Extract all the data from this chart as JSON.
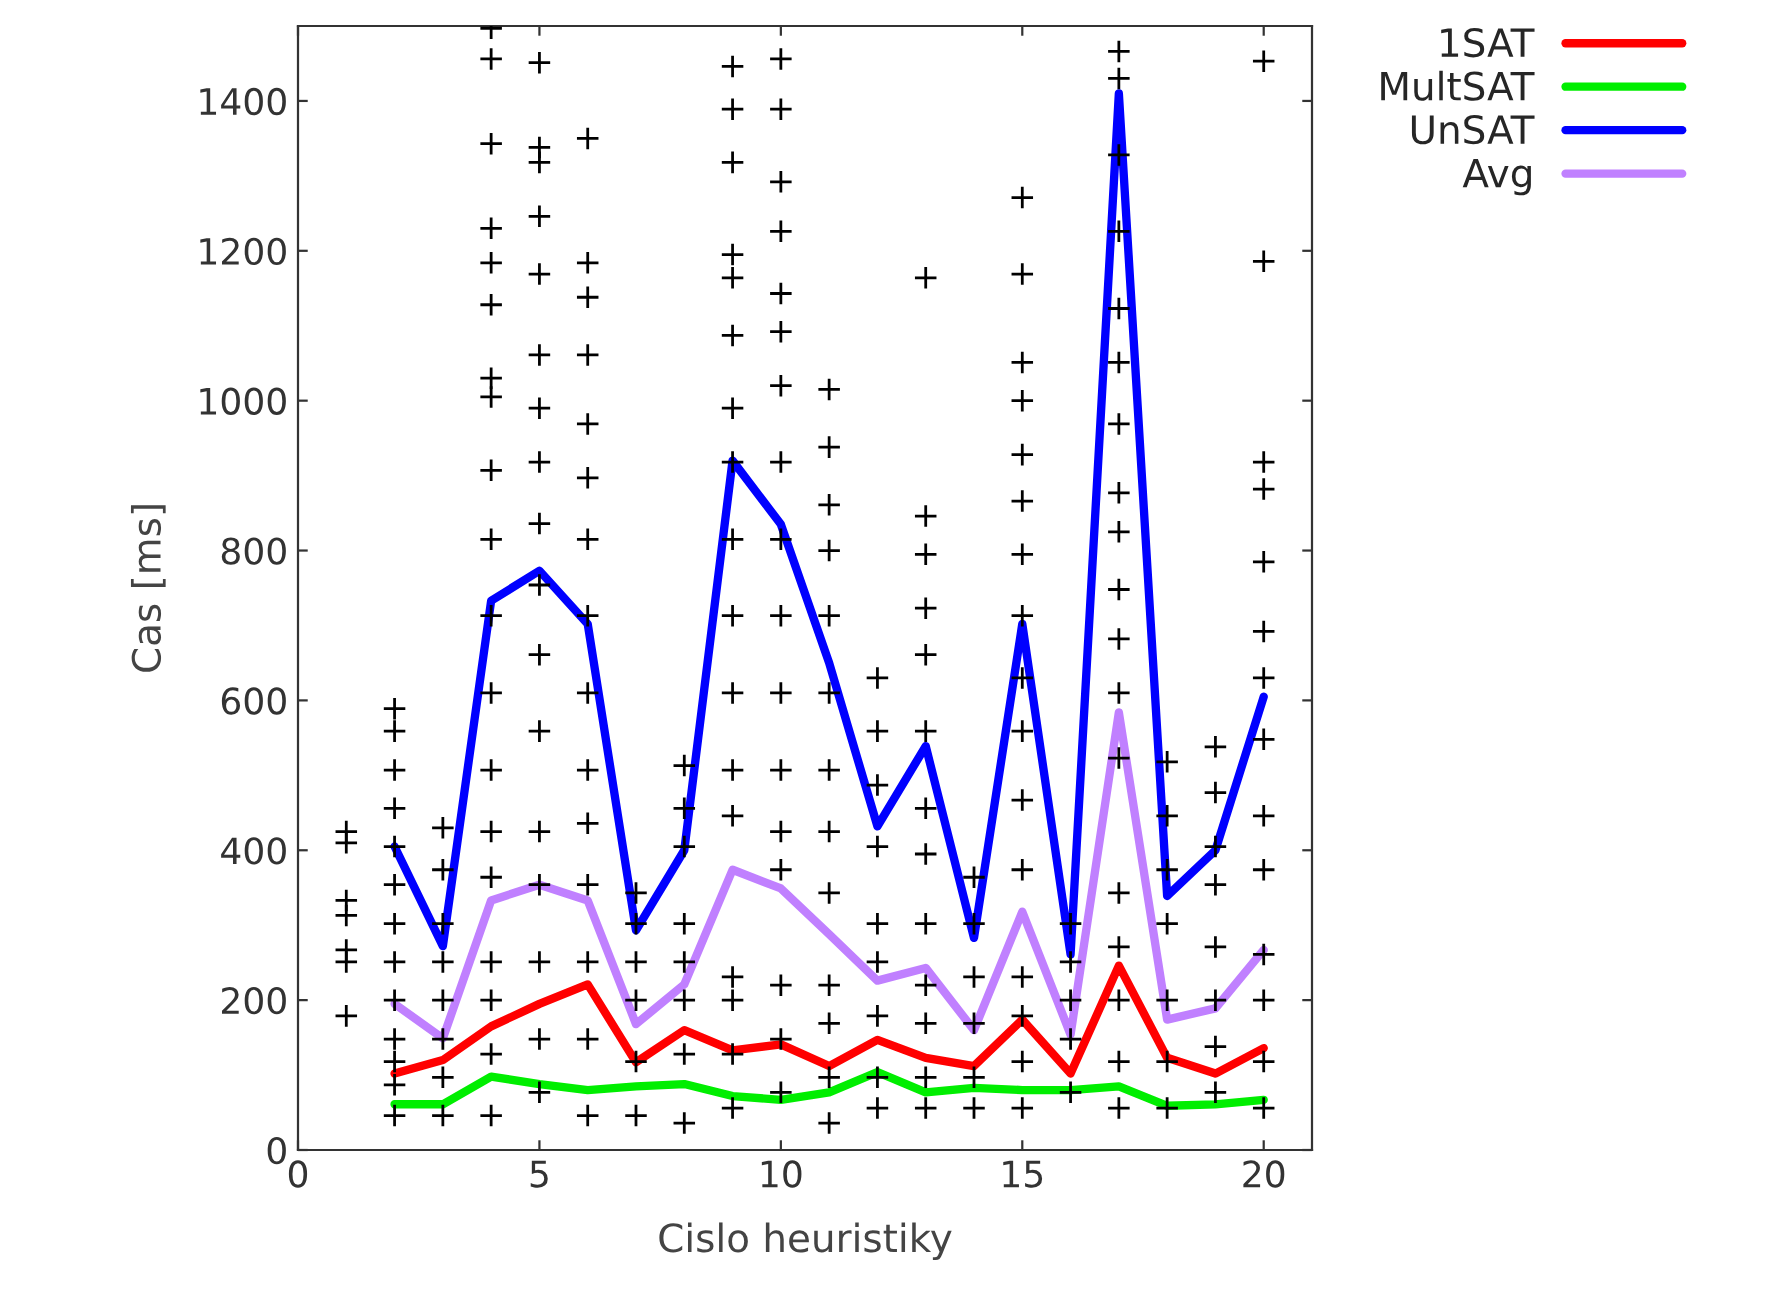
{
  "chart_data": {
    "type": "line",
    "xlabel": "Cislo heuristiky",
    "ylabel": "Cas [ms]",
    "xlim": [
      0,
      21
    ],
    "xticks": [
      0,
      5,
      10,
      15,
      20
    ],
    "ylim": [
      0,
      1500
    ],
    "yticks": [
      0,
      200,
      400,
      600,
      800,
      1000,
      1200,
      1400
    ],
    "grid": false,
    "legend": "top right",
    "series": [
      {
        "type": "scatter",
        "color": "#000000",
        "marker": "cross",
        "x": [
          1,
          1,
          1,
          1,
          1,
          1,
          1,
          2,
          2,
          2,
          2,
          2,
          2,
          2,
          2,
          2,
          2,
          2,
          2,
          2,
          3,
          3,
          3,
          3,
          3,
          3,
          3,
          3,
          4,
          4,
          4,
          4,
          4,
          4,
          4,
          4,
          4,
          4,
          4,
          4,
          4,
          4,
          4,
          4,
          4,
          4,
          4,
          5,
          5,
          5,
          5,
          5,
          5,
          5,
          5,
          5,
          5,
          5,
          5,
          5,
          5,
          5,
          5,
          5,
          6,
          6,
          6,
          6,
          6,
          6,
          6,
          6,
          6,
          6,
          6,
          6,
          6,
          6,
          6,
          7,
          7,
          7,
          7,
          7,
          7,
          8,
          8,
          8,
          8,
          8,
          8,
          8,
          8,
          9,
          9,
          9,
          9,
          9,
          9,
          9,
          9,
          9,
          9,
          9,
          9,
          9,
          9,
          9,
          9,
          9,
          10,
          10,
          10,
          10,
          10,
          10,
          10,
          10,
          10,
          10,
          10,
          10,
          10,
          10,
          10,
          10,
          10,
          11,
          11,
          11,
          11,
          11,
          11,
          11,
          11,
          11,
          11,
          11,
          11,
          11,
          12,
          12,
          12,
          12,
          12,
          12,
          12,
          12,
          12,
          13,
          13,
          13,
          13,
          13,
          13,
          13,
          13,
          13,
          13,
          13,
          13,
          13,
          14,
          14,
          14,
          14,
          14,
          14,
          15,
          15,
          15,
          15,
          15,
          15,
          15,
          15,
          15,
          15,
          15,
          15,
          15,
          15,
          15,
          15,
          16,
          16,
          16,
          16,
          16,
          17,
          17,
          17,
          17,
          17,
          17,
          17,
          17,
          17,
          17,
          17,
          17,
          17,
          17,
          17,
          17,
          17,
          17,
          18,
          18,
          18,
          18,
          18,
          18,
          18,
          19,
          19,
          19,
          19,
          19,
          19,
          19,
          19,
          20,
          20,
          20,
          20,
          20,
          20,
          20,
          20,
          20,
          20,
          20,
          20,
          20,
          20
        ],
        "values": [
          425,
          410,
          333,
          313,
          267,
          251,
          179,
          589,
          559,
          507,
          456,
          405,
          354,
          302,
          251,
          200,
          148,
          118,
          87,
          46,
          430,
          374,
          302,
          251,
          200,
          148,
          97,
          46,
          1497,
          1456,
          1343,
          1230,
          1184,
          1128,
          1030,
          1005,
          907,
          815,
          713,
          610,
          507,
          425,
          364,
          251,
          200,
          128,
          46,
          1451,
          1338,
          1318,
          1246,
          1169,
          1061,
          990,
          918,
          836,
          754,
          661,
          559,
          425,
          354,
          251,
          148,
          77,
          1350,
          1184,
          1138,
          1061,
          969,
          897,
          815,
          713,
          610,
          507,
          436,
          354,
          251,
          148,
          46,
          343,
          302,
          251,
          200,
          118,
          46,
          513,
          456,
          405,
          302,
          251,
          200,
          128,
          36,
          1446,
          1389,
          1318,
          1195,
          1164,
          1087,
          990,
          918,
          815,
          713,
          610,
          507,
          446,
          231,
          200,
          128,
          56,
          1456,
          1389,
          1292,
          1226,
          1143,
          1092,
          1020,
          918,
          815,
          713,
          610,
          507,
          425,
          374,
          220,
          148,
          77,
          1015,
          938,
          861,
          800,
          713,
          610,
          507,
          425,
          343,
          220,
          169,
          97,
          36,
          630,
          559,
          487,
          405,
          302,
          251,
          179,
          97,
          56,
          1164,
          846,
          795,
          723,
          661,
          559,
          456,
          395,
          302,
          220,
          169,
          97,
          56,
          364,
          302,
          231,
          169,
          97,
          56,
          1271,
          1169,
          1051,
          1000,
          928,
          866,
          795,
          713,
          630,
          559,
          467,
          374,
          231,
          179,
          118,
          56,
          302,
          251,
          200,
          148,
          77,
          1466,
          1430,
          1328,
          1226,
          1123,
          1051,
          969,
          877,
          825,
          748,
          682,
          610,
          523,
          343,
          271,
          200,
          118,
          56,
          518,
          446,
          374,
          302,
          200,
          118,
          56,
          538,
          477,
          405,
          354,
          271,
          200,
          138,
          77,
          1453,
          1186,
          918,
          882,
          785,
          692,
          630,
          548,
          446,
          374,
          261,
          200,
          118,
          56
        ]
      },
      {
        "name": "1SAT",
        "color": "#ff0000",
        "x": [
          2,
          3,
          4,
          5,
          6,
          7,
          8,
          9,
          10,
          11,
          12,
          13,
          14,
          15,
          16,
          17,
          18,
          19,
          20
        ],
        "values": [
          102,
          120,
          165,
          195,
          221,
          117,
          160,
          133,
          141,
          112,
          147,
          123,
          112,
          174,
          102,
          246,
          123,
          102,
          136
        ]
      },
      {
        "name": "MultSAT",
        "color": "#00ee00",
        "x": [
          2,
          3,
          4,
          5,
          6,
          7,
          8,
          9,
          10,
          11,
          12,
          13,
          14,
          15,
          16,
          17,
          18,
          19,
          20
        ],
        "values": [
          61,
          61,
          98,
          88,
          80,
          85,
          88,
          72,
          67,
          77,
          104,
          77,
          83,
          80,
          80,
          85,
          59,
          61,
          67
        ]
      },
      {
        "name": "UnSAT",
        "color": "#0000ff",
        "x": [
          2,
          3,
          4,
          5,
          6,
          7,
          8,
          9,
          10,
          11,
          12,
          13,
          14,
          15,
          16,
          17,
          18,
          19,
          20
        ],
        "values": [
          405,
          272,
          733,
          773,
          702,
          293,
          400,
          920,
          835,
          650,
          432,
          539,
          283,
          702,
          261,
          1410,
          339,
          400,
          605
        ]
      },
      {
        "name": "Avg",
        "color": "#c080ff",
        "x": [
          2,
          3,
          4,
          5,
          6,
          7,
          8,
          9,
          10,
          11,
          12,
          13,
          14,
          15,
          16,
          17,
          18,
          19,
          20
        ],
        "values": [
          195,
          149,
          333,
          354,
          333,
          168,
          221,
          374,
          349,
          288,
          226,
          243,
          160,
          318,
          154,
          584,
          174,
          189,
          267
        ]
      }
    ]
  }
}
